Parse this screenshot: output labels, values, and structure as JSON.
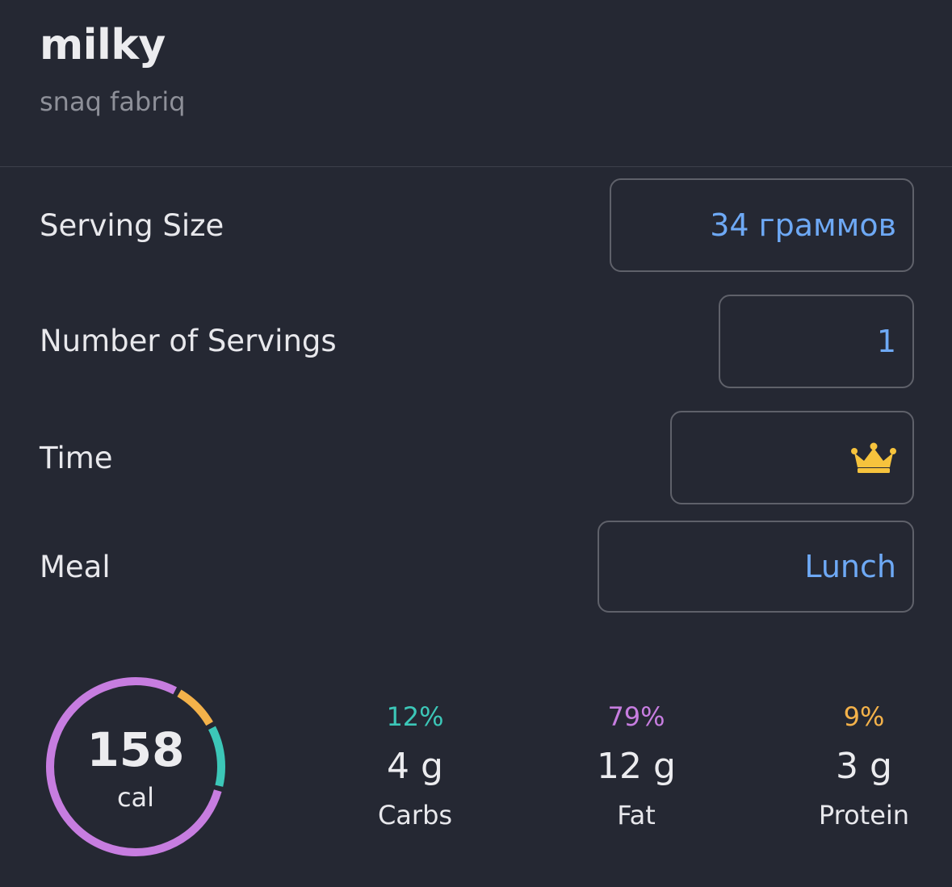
{
  "food": {
    "name": "milky",
    "brand": "snaq fabriq"
  },
  "form": {
    "serving_size": {
      "label": "Serving Size",
      "value": "34 граммов"
    },
    "servings": {
      "label": "Number of Servings",
      "value": "1"
    },
    "time": {
      "label": "Time",
      "icon": "crown-icon"
    },
    "meal": {
      "label": "Meal",
      "value": "Lunch"
    }
  },
  "summary": {
    "calories": "158",
    "calories_unit": "cal",
    "macros": [
      {
        "percent": "12%",
        "percent_value": 12,
        "grams": "4 g",
        "label": "Carbs",
        "color": "#3cc7b8"
      },
      {
        "percent": "79%",
        "percent_value": 79,
        "grams": "12 g",
        "label": "Fat",
        "color": "#c77de0"
      },
      {
        "percent": "9%",
        "percent_value": 9,
        "grams": "3 g",
        "label": "Protein",
        "color": "#f4b24a"
      }
    ]
  },
  "colors": {
    "background": "#252833",
    "accent": "#6ea9f5",
    "crown": "#f6c33d"
  }
}
